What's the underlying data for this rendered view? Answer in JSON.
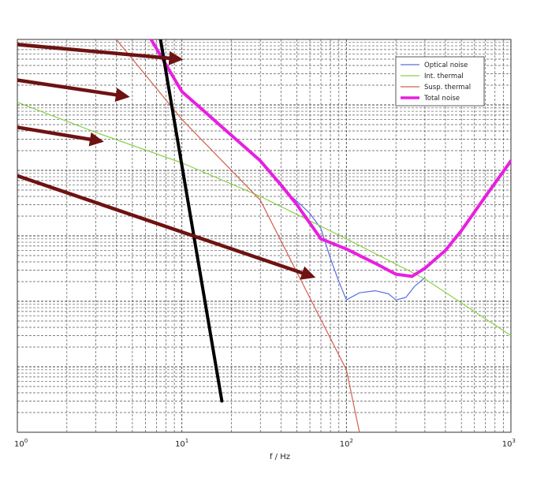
{
  "chart_data": {
    "type": "line",
    "title": "",
    "xlabel": "f / Hz",
    "ylabel": "",
    "x_scale": "log",
    "y_scale": "log",
    "xlim": [
      1,
      1000
    ],
    "ylim": [
      1e-12,
      1e-06
    ],
    "grid": true,
    "legend_position": "top-right",
    "x_ticks": [
      {
        "base": "10",
        "exp": "0",
        "value": 1
      },
      {
        "base": "10",
        "exp": "1",
        "value": 10
      },
      {
        "base": "10",
        "exp": "2",
        "value": 100
      },
      {
        "base": "10",
        "exp": "3",
        "value": 1000
      }
    ],
    "series": [
      {
        "name": "Optical noise",
        "color": "#5a6ee8",
        "x": [
          40,
          50,
          60,
          70,
          80,
          90,
          100,
          120,
          150,
          180,
          200,
          230,
          260,
          300
        ],
        "y": [
          5.5e-09,
          3.4e-09,
          2.2e-09,
          1.3e-09,
          4.5e-10,
          2e-10,
          1.05e-10,
          1.35e-10,
          1.45e-10,
          1.3e-10,
          1.05e-10,
          1.15e-10,
          1.7e-10,
          2.3e-10
        ]
      },
      {
        "name": "Int. thermal",
        "color": "#8ad14a",
        "x": [
          1,
          3,
          10,
          30,
          100,
          300,
          1000
        ],
        "y": [
          1.1e-07,
          3.8e-08,
          1.3e-08,
          4e-09,
          9e-10,
          2.2e-10,
          3e-11
        ]
      },
      {
        "name": "Susp. thermal",
        "color": "#d2604b",
        "x": [
          4,
          10,
          30,
          100,
          120
        ],
        "y": [
          1e-06,
          6e-08,
          3.5e-09,
          9e-12,
          1e-12
        ]
      },
      {
        "name": "Total noise",
        "color": "#e81fe0",
        "x": [
          6.5,
          10,
          30,
          40,
          50,
          70,
          100,
          150,
          200,
          250,
          300,
          400,
          500,
          700,
          1000
        ],
        "y": [
          1e-06,
          1.6e-07,
          1.4e-08,
          6e-09,
          3e-09,
          9e-10,
          6.3e-10,
          3.8e-10,
          2.6e-10,
          2.4e-10,
          3.2e-10,
          6e-10,
          1.2e-09,
          4e-09,
          1.4e-08
        ]
      }
    ],
    "annotations": {
      "arrows": [
        {
          "from": {
            "x": 0.8,
            "y": 8.8e-07
          },
          "to": {
            "x": 9.7,
            "y": 5e-07
          }
        },
        {
          "from": {
            "x": 0.8,
            "y": 2.6e-07
          },
          "to": {
            "x": 4.6,
            "y": 1.35e-07
          }
        },
        {
          "from": {
            "x": 0.8,
            "y": 5e-08
          },
          "to": {
            "x": 3.2,
            "y": 2.8e-08
          }
        },
        {
          "from": {
            "x": 0.8,
            "y": 1e-08
          },
          "to": {
            "x": 62,
            "y": 2.4e-10
          }
        }
      ],
      "arrow_color": "#6e1212",
      "black_line": {
        "from": {
          "x": 7.4,
          "y": 1.03e-06
        },
        "to": {
          "x": 17.5,
          "y": 3e-12
        },
        "color": "#000000"
      }
    }
  }
}
